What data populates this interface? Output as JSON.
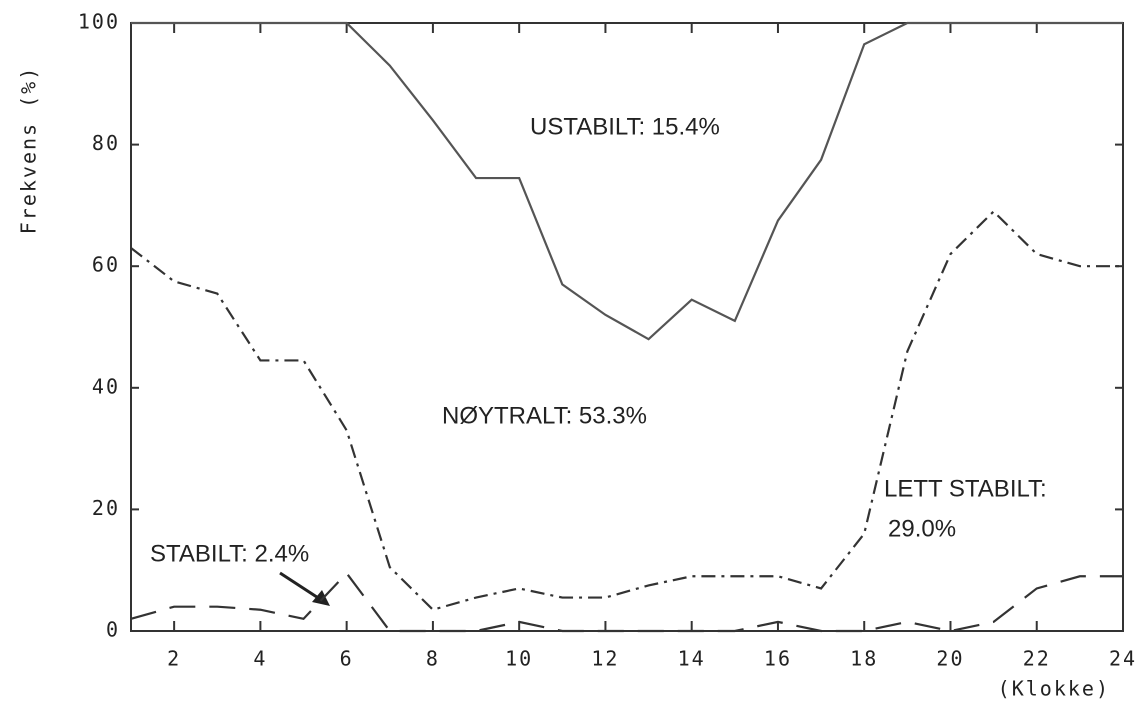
{
  "chart_data": {
    "type": "line",
    "y_label": "Frekvens (%)",
    "x_label": "(Klokke)",
    "x": [
      1,
      2,
      3,
      4,
      5,
      6,
      7,
      8,
      9,
      10,
      11,
      12,
      13,
      14,
      15,
      16,
      17,
      18,
      19,
      20,
      21,
      22,
      23,
      24
    ],
    "series": [
      {
        "color": "#555555",
        "style": "solid",
        "values": [
          100,
          100,
          100,
          100,
          100,
          100,
          93,
          84,
          74.5,
          74.5,
          57,
          52,
          48,
          54.5,
          51,
          67.5,
          77.5,
          96.5,
          100,
          100,
          100,
          100,
          100,
          100
        ]
      },
      {
        "color": "#333333",
        "style": "dashdot",
        "values": [
          63,
          57.5,
          55.5,
          44.5,
          44.5,
          33,
          10.5,
          3.5,
          5.5,
          7,
          5.5,
          5.5,
          7.5,
          9,
          9,
          9,
          7,
          16,
          46,
          62,
          69,
          62,
          60,
          60
        ]
      },
      {
        "color": "#333333",
        "style": "dashed",
        "values": [
          2,
          4,
          4,
          3.5,
          2,
          9.5,
          0,
          0,
          0,
          1.5,
          0,
          0,
          0,
          0,
          0,
          1.5,
          0,
          0,
          1.5,
          0,
          1.5,
          7,
          9,
          9
        ]
      }
    ],
    "annotations": [
      "USTABILT: 15.4%",
      "NØYTRALT: 53.3%",
      "LETT STABILT:",
      "29.0%",
      "STABILT: 2.4%"
    ],
    "xlim": [
      1,
      24
    ],
    "xticks": [
      2,
      4,
      6,
      8,
      10,
      12,
      14,
      16,
      18,
      20,
      22,
      24
    ],
    "ylim": [
      0,
      100
    ],
    "yticks": [
      0,
      20,
      40,
      60,
      80,
      100
    ],
    "grid": false
  }
}
